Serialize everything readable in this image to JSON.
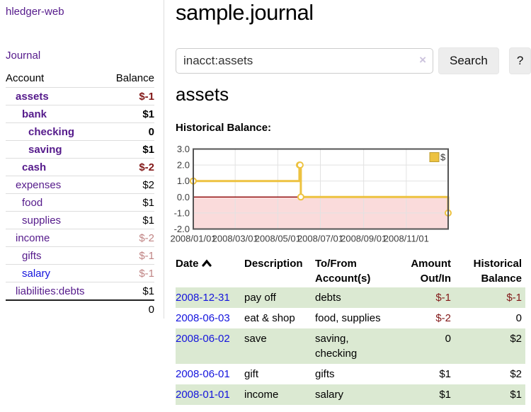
{
  "sidebar": {
    "brand": "hledger-web",
    "nav": {
      "journal": "Journal"
    },
    "accounts_table": {
      "headers": {
        "account": "Account",
        "balance": "Balance"
      },
      "rows": [
        {
          "name": "assets",
          "indent": 1,
          "bold": true,
          "balance": "$-1",
          "balance_style": "neg",
          "link_style": "visited"
        },
        {
          "name": "bank",
          "indent": 2,
          "bold": true,
          "balance": "$1",
          "balance_style": "pos",
          "link_style": "visited"
        },
        {
          "name": "checking",
          "indent": 3,
          "bold": true,
          "balance": "0",
          "balance_style": "pos",
          "link_style": "visited"
        },
        {
          "name": "saving",
          "indent": 3,
          "bold": true,
          "balance": "$1",
          "balance_style": "pos",
          "link_style": "visited"
        },
        {
          "name": "cash",
          "indent": 2,
          "bold": true,
          "balance": "$-2",
          "balance_style": "neg",
          "link_style": "visited"
        },
        {
          "name": "expenses",
          "indent": 1,
          "bold": false,
          "balance": "$2",
          "balance_style": "pos",
          "link_style": "visited"
        },
        {
          "name": "food",
          "indent": 2,
          "bold": false,
          "balance": "$1",
          "balance_style": "pos",
          "link_style": "visited"
        },
        {
          "name": "supplies",
          "indent": 2,
          "bold": false,
          "balance": "$1",
          "balance_style": "pos",
          "link_style": "visited"
        },
        {
          "name": "income",
          "indent": 1,
          "bold": false,
          "balance": "$-2",
          "balance_style": "neg-faded",
          "link_style": "visited"
        },
        {
          "name": "gifts",
          "indent": 2,
          "bold": false,
          "balance": "$-1",
          "balance_style": "neg-faded",
          "link_style": "visited"
        },
        {
          "name": "salary",
          "indent": 2,
          "bold": false,
          "balance": "$-1",
          "balance_style": "neg-faded",
          "link_style": "unvisited"
        },
        {
          "name": "liabilities:debts",
          "indent": 1,
          "bold": false,
          "balance": "$1",
          "balance_style": "pos",
          "link_style": "visited"
        }
      ],
      "total": "0"
    }
  },
  "main": {
    "title": "sample.journal",
    "search": {
      "value": "inacct:assets",
      "clear_icon": "×",
      "button": "Search",
      "help_button": "?"
    },
    "account_heading": "assets",
    "chart_label": "Historical Balance:"
  },
  "chart_data": {
    "type": "line",
    "step": true,
    "title": "Historical Balance",
    "series": [
      {
        "name": "$",
        "color": "#EDC240",
        "points": [
          [
            "2008-01-01",
            1
          ],
          [
            "2008-06-01",
            2
          ],
          [
            "2008-06-02",
            2
          ],
          [
            "2008-06-03",
            0
          ],
          [
            "2008-12-31",
            -1
          ]
        ]
      }
    ],
    "xlim": [
      "2008-01-01",
      "2008-12-31"
    ],
    "ylim": [
      -2,
      3
    ],
    "y_ticks": [
      {
        "value": 3,
        "label": "3.0"
      },
      {
        "value": 2,
        "label": "2.0"
      },
      {
        "value": 1,
        "label": "1.0"
      },
      {
        "value": 0,
        "label": "0.0"
      },
      {
        "value": -1,
        "label": "-1.0"
      },
      {
        "value": -2,
        "label": "-2.0"
      }
    ],
    "x_ticks": [
      {
        "date": "2008-01-01",
        "label": "2008/01/01"
      },
      {
        "date": "2008-03-01",
        "label": "2008/03/01"
      },
      {
        "date": "2008-05-01",
        "label": "2008/05/01"
      },
      {
        "date": "2008-07-01",
        "label": "2008/07/01"
      },
      {
        "date": "2008-09-01",
        "label": "2008/09/01"
      },
      {
        "date": "2008-11-01",
        "label": "2008/11/01"
      }
    ],
    "legend": {
      "label": "$",
      "position": "top-right"
    },
    "grid": true,
    "colors": {
      "negative_region": "#fadbdb",
      "zero_line": "#8b0000",
      "gridline": "#e2e2e2",
      "border": "#545454",
      "tick_text": "#3c3c3c",
      "legend_square_border": "#bd9d33"
    }
  },
  "register_table": {
    "headers": [
      {
        "text": "Date",
        "sort": "asc",
        "align": "left"
      },
      {
        "text": "Description",
        "align": "left"
      },
      {
        "text": "To/From Account(s)",
        "align": "left"
      },
      {
        "text": "Amount Out/In",
        "align": "right"
      },
      {
        "text": "Historical Balance",
        "align": "right"
      }
    ],
    "rows": [
      {
        "date": "2008-12-31",
        "description": "pay off",
        "accounts": "debts",
        "amount": "$-1",
        "amount_style": "neg",
        "balance": "$-1",
        "balance_style": "neg"
      },
      {
        "date": "2008-06-03",
        "description": "eat & shop",
        "accounts": "food, supplies",
        "amount": "$-2",
        "amount_style": "neg",
        "balance": "0",
        "balance_style": "pos"
      },
      {
        "date": "2008-06-02",
        "description": "save",
        "accounts": "saving, checking",
        "amount": "0",
        "amount_style": "pos",
        "balance": "$2",
        "balance_style": "pos"
      },
      {
        "date": "2008-06-01",
        "description": "gift",
        "accounts": "gifts",
        "amount": "$1",
        "amount_style": "pos",
        "balance": "$2",
        "balance_style": "pos"
      },
      {
        "date": "2008-01-01",
        "description": "income",
        "accounts": "salary",
        "amount": "$1",
        "amount_style": "pos",
        "balance": "$1",
        "balance_style": "pos"
      }
    ]
  },
  "colors": {
    "link_visited_purple": "#551A8B",
    "link_unvisited_blue": "#1414dd",
    "negative_strong": "#821818",
    "negative_faded": "#c08484",
    "row_stripe_green": "#dbe9d2",
    "series_gold": "#EDC240"
  }
}
